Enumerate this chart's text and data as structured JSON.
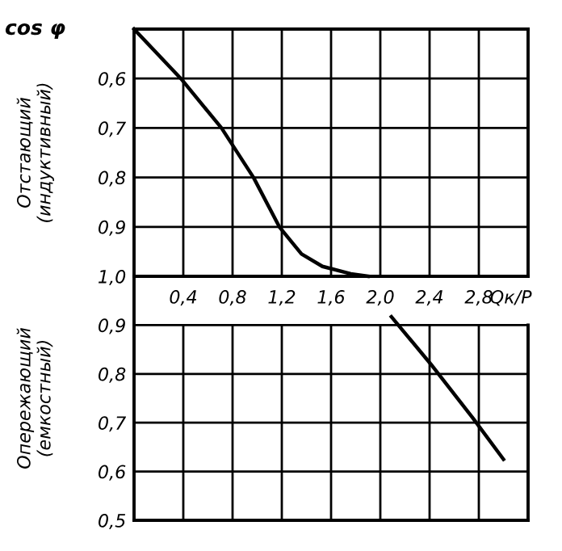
{
  "chart_data": [
    {
      "type": "line",
      "ylabel": "cos φ",
      "xlabel": "Qк/P",
      "annotations": [
        "Отстающий\n(индуктивный)"
      ],
      "x": [
        0,
        0.38,
        0.71,
        0.97,
        1.18,
        1.36,
        1.53,
        1.76,
        1.9
      ],
      "values": [
        0.5,
        0.6,
        0.7,
        0.8,
        0.9,
        0.955,
        0.98,
        0.995,
        1.0
      ],
      "color": "#000000",
      "xlim": [
        0,
        3.2
      ],
      "xticks": [
        {
          "value": 0,
          "label": null
        },
        {
          "value": 0.4,
          "label": "0,4"
        },
        {
          "value": 0.8,
          "label": "0,8"
        },
        {
          "value": 1.2,
          "label": "1,2"
        },
        {
          "value": 1.6,
          "label": "1,6"
        },
        {
          "value": 2.0,
          "label": "2,0"
        },
        {
          "value": 2.4,
          "label": "2,4"
        },
        {
          "value": 2.8,
          "label": "2,8"
        },
        {
          "value": 3.2,
          "label": null
        }
      ],
      "ylim": [
        1.0,
        0.5
      ],
      "yticks": [
        {
          "value": 0.5,
          "label": null
        },
        {
          "value": 0.6,
          "label": "0,6"
        },
        {
          "value": 0.7,
          "label": "0,7"
        },
        {
          "value": 0.8,
          "label": "0,8"
        },
        {
          "value": 0.9,
          "label": "0,9"
        },
        {
          "value": 1.0,
          "label": "1,0"
        }
      ],
      "grid": true,
      "marker": "none",
      "line_style": "solid"
    },
    {
      "type": "line",
      "annotations": [
        "Опережающий\n(емкостный)"
      ],
      "x": [
        2.09,
        2.41,
        2.75,
        3.0
      ],
      "values": [
        0.917,
        0.82,
        0.71,
        0.625
      ],
      "color": "#000000",
      "xlim": [
        0,
        3.2
      ],
      "xticks": [
        {
          "value": 0,
          "label": null
        },
        {
          "value": 0.4,
          "label": null
        },
        {
          "value": 0.8,
          "label": null
        },
        {
          "value": 1.2,
          "label": null
        },
        {
          "value": 1.6,
          "label": null
        },
        {
          "value": 2.0,
          "label": null
        },
        {
          "value": 2.4,
          "label": null
        },
        {
          "value": 2.8,
          "label": null
        },
        {
          "value": 3.2,
          "label": null
        }
      ],
      "ylim": [
        0.5,
        1.0
      ],
      "yticks": [
        {
          "value": 0.5,
          "label": "0,5"
        },
        {
          "value": 0.6,
          "label": "0,6"
        },
        {
          "value": 0.7,
          "label": "0,7"
        },
        {
          "value": 0.8,
          "label": "0,8"
        },
        {
          "value": 0.9,
          "label": "0,9"
        }
      ],
      "tick_labels": "y",
      "grid": true,
      "marker": "none",
      "line_style": "solid"
    }
  ]
}
